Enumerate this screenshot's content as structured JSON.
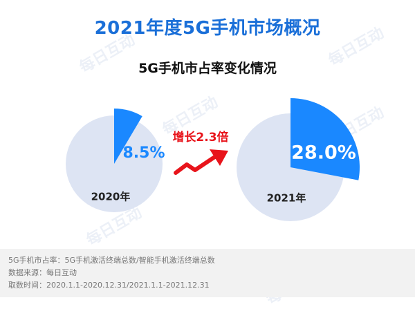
{
  "header": {
    "title": "2021年度5G手机市场概况",
    "subtitle": "5G手机市占率变化情况"
  },
  "watermark": {
    "text": "每日互动"
  },
  "colors": {
    "title": "#1a6fd8",
    "accent": "#1a88ff",
    "pie_background": "#dde4f3",
    "growth": "#e8141b"
  },
  "chart_data": {
    "type": "pie",
    "title": "5G手机市占率变化情况",
    "charts": [
      {
        "label": "2020年",
        "value": 8.5,
        "value_label": "8.5%"
      },
      {
        "label": "2021年",
        "value": 28.0,
        "value_label": "28.0%"
      }
    ],
    "annotation": "增长2.3倍"
  },
  "footer": {
    "definition": "5G手机市占率：5G手机激活终端总数/智能手机激活终端总数",
    "source": "数据来源：每日互动",
    "period": "取数时间：2020.1.1-2020.12.31/2021.1.1-2021.12.31"
  }
}
